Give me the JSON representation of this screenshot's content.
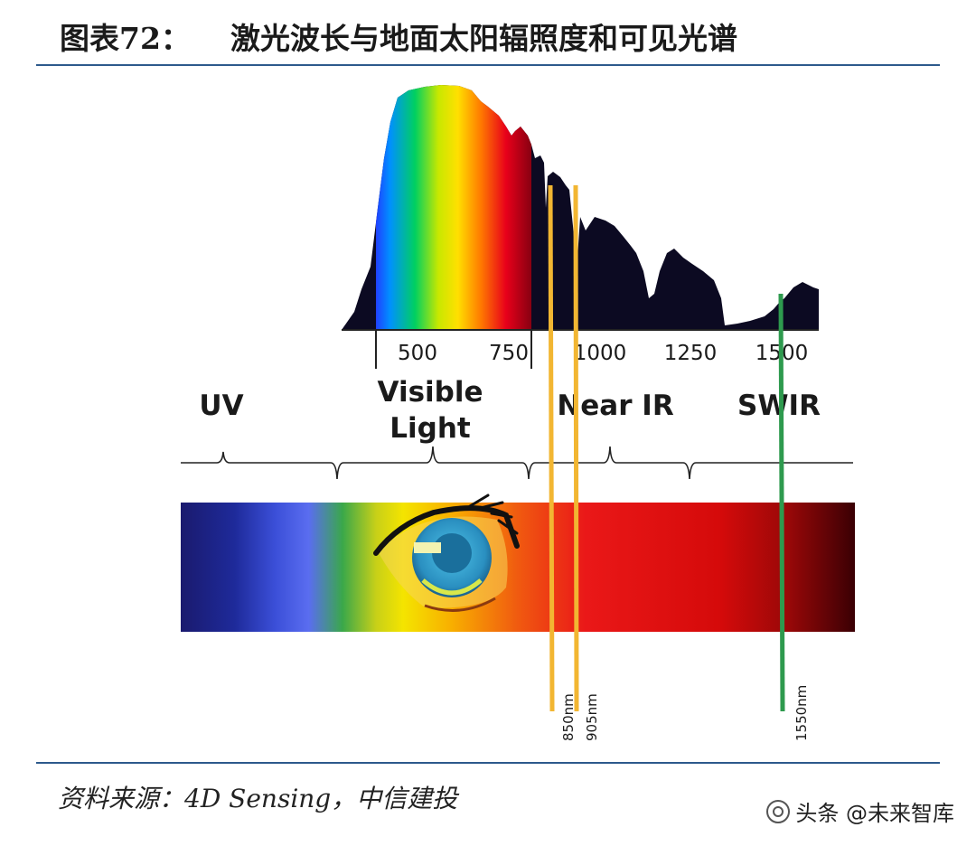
{
  "title": {
    "number": "图表72：",
    "text": "激光波长与地面太阳辐照度和可见光谱"
  },
  "spectrum": {
    "axis_ticks": [
      "500",
      "750",
      "1000",
      "1250",
      "1500"
    ],
    "regions": {
      "uv": "UV",
      "visible_line1": "Visible",
      "visible_line2": "Light",
      "near_ir": "Near IR",
      "swir": "SWIR"
    },
    "laser_lines": [
      {
        "label": "850nm",
        "color": "#f2b632"
      },
      {
        "label": "905nm",
        "color": "#f2b632"
      },
      {
        "label": "1550nm",
        "color": "#2e9a4e"
      }
    ]
  },
  "source": "资料来源：4D Sensing，中信建投",
  "watermark": "头条 @未来智库",
  "colors": {
    "rule": "#2d5a8c",
    "irradiance": "#0c0a22"
  }
}
